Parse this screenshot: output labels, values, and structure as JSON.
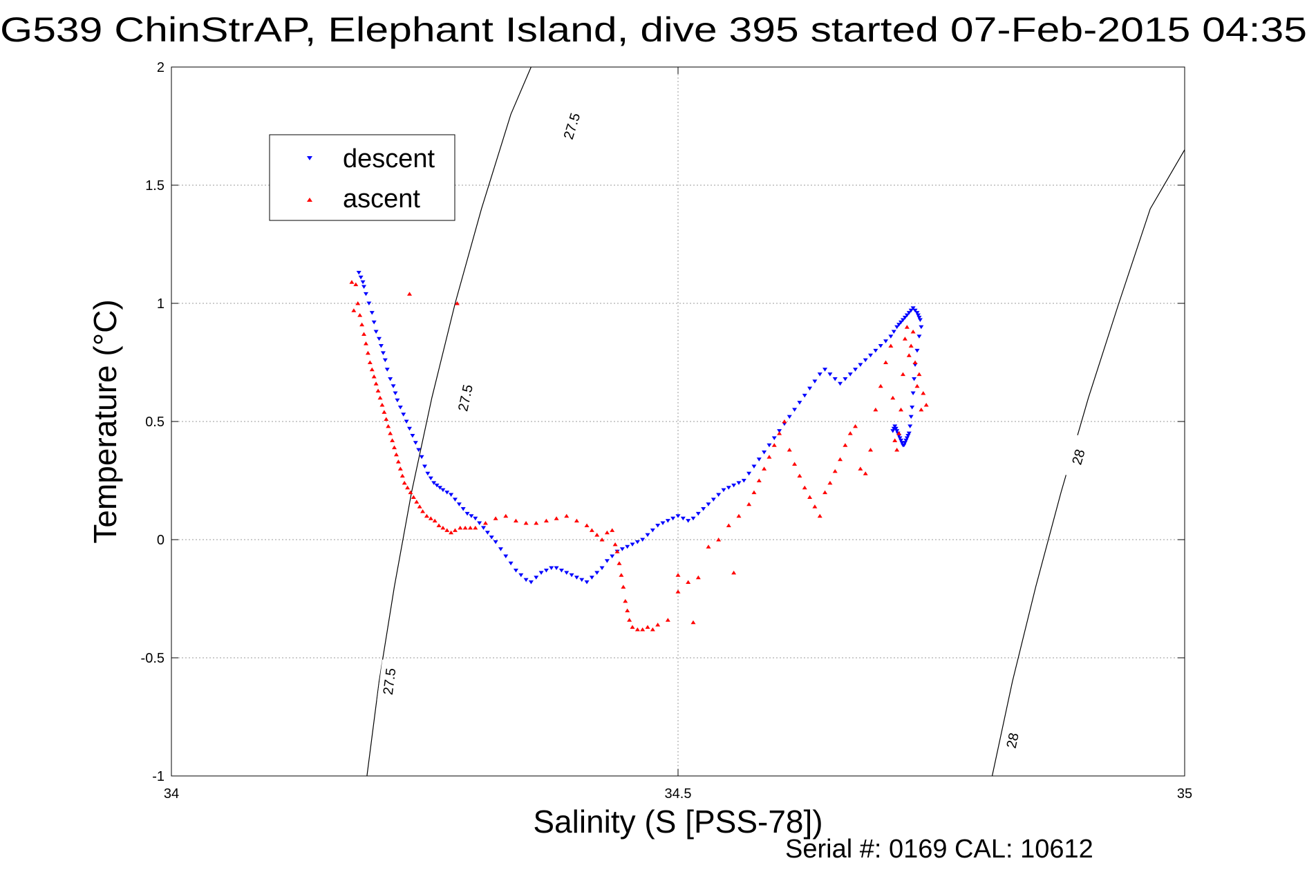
{
  "chart_data": {
    "type": "scatter",
    "title": "G539 ChinStrAP, Elephant Island, dive 395 started 07-Feb-2015 04:35",
    "xlabel": "Salinity (S [PSS-78])",
    "ylabel": "Temperature (°C)",
    "xlim": [
      34,
      35
    ],
    "ylim": [
      -1,
      2
    ],
    "xticks": [
      34,
      34.5,
      35
    ],
    "yticks": [
      -1,
      -0.5,
      0,
      0.5,
      1,
      1.5,
      2
    ],
    "grid": true,
    "legend_position": "top-left",
    "footer": "Serial #: 0169 CAL: 10612",
    "series": [
      {
        "name": "descent",
        "marker": "triangle-down",
        "color": "#0000ff",
        "x": [
          34.185,
          34.187,
          34.189,
          34.19,
          34.192,
          34.195,
          34.198,
          34.2,
          34.202,
          34.205,
          34.207,
          34.209,
          34.211,
          34.213,
          34.216,
          34.219,
          34.221,
          34.223,
          34.226,
          34.229,
          34.232,
          34.235,
          34.238,
          34.241,
          34.244,
          34.247,
          34.25,
          34.253,
          34.256,
          34.259,
          34.262,
          34.265,
          34.268,
          34.272,
          34.276,
          34.28,
          34.284,
          34.288,
          34.292,
          34.296,
          34.3,
          34.304,
          34.308,
          34.312,
          34.316,
          34.32,
          34.325,
          34.33,
          34.335,
          34.34,
          34.345,
          34.35,
          34.355,
          34.36,
          34.365,
          34.37,
          34.375,
          34.38,
          34.385,
          34.39,
          34.395,
          34.4,
          34.405,
          34.41,
          34.415,
          34.42,
          34.425,
          34.43,
          34.435,
          34.44,
          34.445,
          34.45,
          34.455,
          34.46,
          34.465,
          34.47,
          34.475,
          34.48,
          34.485,
          34.49,
          34.495,
          34.5,
          34.505,
          34.51,
          34.515,
          34.52,
          34.525,
          34.53,
          34.535,
          34.54,
          34.545,
          34.55,
          34.555,
          34.56,
          34.565,
          34.57,
          34.575,
          34.58,
          34.585,
          34.59,
          34.595,
          34.6,
          34.605,
          34.61,
          34.615,
          34.62,
          34.625,
          34.63,
          34.635,
          34.64,
          34.645,
          34.65,
          34.655,
          34.66,
          34.665,
          34.67,
          34.675,
          34.68,
          34.685,
          34.69,
          34.695,
          34.7,
          34.705,
          34.71,
          34.713,
          34.716,
          34.718,
          34.72,
          34.722,
          34.724,
          34.726,
          34.728,
          34.73,
          34.732,
          34.734,
          34.736,
          34.737,
          34.738,
          34.739,
          34.74,
          34.738,
          34.736,
          34.734,
          34.733,
          34.732,
          34.731,
          34.73,
          34.729,
          34.728,
          34.727,
          34.726,
          34.725,
          34.724,
          34.723,
          34.722,
          34.721,
          34.72,
          34.719,
          34.718,
          34.717,
          34.716,
          34.715,
          34.714,
          34.713,
          34.712
        ],
        "y": [
          1.13,
          1.11,
          1.09,
          1.07,
          1.04,
          1.0,
          0.96,
          0.92,
          0.88,
          0.85,
          0.82,
          0.79,
          0.76,
          0.72,
          0.68,
          0.65,
          0.62,
          0.59,
          0.56,
          0.53,
          0.5,
          0.47,
          0.44,
          0.41,
          0.38,
          0.35,
          0.31,
          0.28,
          0.26,
          0.24,
          0.23,
          0.22,
          0.21,
          0.2,
          0.19,
          0.17,
          0.15,
          0.13,
          0.11,
          0.1,
          0.09,
          0.07,
          0.05,
          0.03,
          0.01,
          -0.01,
          -0.04,
          -0.07,
          -0.1,
          -0.13,
          -0.15,
          -0.17,
          -0.18,
          -0.16,
          -0.14,
          -0.13,
          -0.12,
          -0.12,
          -0.13,
          -0.14,
          -0.15,
          -0.16,
          -0.17,
          -0.18,
          -0.16,
          -0.14,
          -0.12,
          -0.09,
          -0.07,
          -0.05,
          -0.04,
          -0.03,
          -0.02,
          -0.01,
          0.0,
          0.02,
          0.04,
          0.06,
          0.07,
          0.08,
          0.09,
          0.1,
          0.09,
          0.08,
          0.09,
          0.11,
          0.13,
          0.15,
          0.17,
          0.19,
          0.21,
          0.22,
          0.23,
          0.24,
          0.25,
          0.28,
          0.31,
          0.34,
          0.37,
          0.4,
          0.43,
          0.46,
          0.49,
          0.52,
          0.55,
          0.58,
          0.61,
          0.64,
          0.67,
          0.7,
          0.72,
          0.7,
          0.68,
          0.66,
          0.68,
          0.7,
          0.72,
          0.74,
          0.76,
          0.78,
          0.8,
          0.82,
          0.84,
          0.86,
          0.88,
          0.9,
          0.91,
          0.92,
          0.93,
          0.94,
          0.95,
          0.96,
          0.97,
          0.98,
          0.97,
          0.96,
          0.95,
          0.94,
          0.93,
          0.9,
          0.86,
          0.8,
          0.74,
          0.68,
          0.62,
          0.56,
          0.52,
          0.48,
          0.45,
          0.44,
          0.43,
          0.42,
          0.41,
          0.4,
          0.4,
          0.41,
          0.42,
          0.43,
          0.44,
          0.45,
          0.46,
          0.47,
          0.48,
          0.47,
          0.46
        ]
      },
      {
        "name": "ascent",
        "marker": "triangle-up",
        "color": "#ff0000",
        "x": [
          34.178,
          34.18,
          34.182,
          34.184,
          34.186,
          34.188,
          34.19,
          34.192,
          34.194,
          34.196,
          34.198,
          34.2,
          34.202,
          34.204,
          34.206,
          34.208,
          34.21,
          34.212,
          34.214,
          34.216,
          34.218,
          34.22,
          34.222,
          34.224,
          34.226,
          34.228,
          34.23,
          34.233,
          34.236,
          34.239,
          34.242,
          34.245,
          34.248,
          34.252,
          34.256,
          34.26,
          34.264,
          34.268,
          34.272,
          34.276,
          34.28,
          34.285,
          34.29,
          34.295,
          34.3,
          34.31,
          34.32,
          34.33,
          34.34,
          34.35,
          34.36,
          34.37,
          34.38,
          34.39,
          34.4,
          34.41,
          34.415,
          34.42,
          34.425,
          34.43,
          34.435,
          34.438,
          34.44,
          34.442,
          34.444,
          34.446,
          34.448,
          34.45,
          34.452,
          34.455,
          34.46,
          34.465,
          34.47,
          34.475,
          34.48,
          34.49,
          34.5,
          34.51,
          34.52,
          34.53,
          34.54,
          34.55,
          34.56,
          34.57,
          34.575,
          34.58,
          34.585,
          34.59,
          34.595,
          34.6,
          34.605,
          34.61,
          34.615,
          34.62,
          34.625,
          34.63,
          34.635,
          34.64,
          34.645,
          34.65,
          34.655,
          34.66,
          34.665,
          34.67,
          34.675,
          34.68,
          34.685,
          34.69,
          34.695,
          34.7,
          34.705,
          34.71,
          34.712,
          34.714,
          34.716,
          34.718,
          34.72,
          34.722,
          34.724,
          34.726,
          34.728,
          34.73,
          34.732,
          34.734,
          34.736,
          34.738,
          34.74,
          34.742,
          34.745,
          34.235,
          34.282,
          34.5,
          34.515,
          34.555
        ],
        "y": [
          1.09,
          0.97,
          1.08,
          1.0,
          0.95,
          0.91,
          0.87,
          0.83,
          0.79,
          0.75,
          0.72,
          0.69,
          0.66,
          0.63,
          0.6,
          0.57,
          0.54,
          0.51,
          0.48,
          0.45,
          0.42,
          0.39,
          0.36,
          0.33,
          0.3,
          0.27,
          0.24,
          0.22,
          0.2,
          0.18,
          0.16,
          0.14,
          0.12,
          0.1,
          0.09,
          0.08,
          0.06,
          0.05,
          0.04,
          0.03,
          0.04,
          0.05,
          0.05,
          0.05,
          0.05,
          0.07,
          0.09,
          0.1,
          0.08,
          0.07,
          0.07,
          0.08,
          0.09,
          0.1,
          0.08,
          0.06,
          0.04,
          0.02,
          0.0,
          0.03,
          0.04,
          -0.02,
          -0.05,
          -0.1,
          -0.15,
          -0.2,
          -0.26,
          -0.3,
          -0.34,
          -0.37,
          -0.38,
          -0.38,
          -0.37,
          -0.38,
          -0.36,
          -0.34,
          -0.22,
          -0.18,
          -0.16,
          -0.03,
          0.0,
          0.06,
          0.1,
          0.15,
          0.2,
          0.25,
          0.3,
          0.35,
          0.4,
          0.45,
          0.5,
          0.38,
          0.32,
          0.27,
          0.22,
          0.18,
          0.14,
          0.1,
          0.2,
          0.24,
          0.29,
          0.34,
          0.4,
          0.45,
          0.48,
          0.3,
          0.28,
          0.38,
          0.55,
          0.65,
          0.75,
          0.82,
          0.6,
          0.42,
          0.38,
          0.45,
          0.55,
          0.7,
          0.85,
          0.9,
          0.78,
          0.82,
          0.88,
          0.75,
          0.65,
          0.7,
          0.55,
          0.62,
          0.57,
          1.04,
          1.0,
          -0.15,
          -0.35,
          -0.14
        ]
      }
    ],
    "contours": [
      {
        "label": "27.5",
        "points": [
          [
            34.193,
            -1.0
          ],
          [
            34.205,
            -0.6
          ],
          [
            34.22,
            -0.2
          ],
          [
            34.237,
            0.2
          ],
          [
            34.257,
            0.6
          ],
          [
            34.28,
            1.0
          ],
          [
            34.306,
            1.4
          ],
          [
            34.335,
            1.8
          ],
          [
            34.355,
            2.0
          ]
        ],
        "label_positions": [
          [
            34.215,
            -0.6
          ],
          [
            34.29,
            0.6
          ],
          [
            34.395,
            1.75
          ]
        ]
      },
      {
        "label": "28",
        "points": [
          [
            34.81,
            -1.0
          ],
          [
            34.83,
            -0.6
          ],
          [
            34.853,
            -0.2
          ],
          [
            34.878,
            0.2
          ],
          [
            34.905,
            0.6
          ],
          [
            34.935,
            1.0
          ],
          [
            34.966,
            1.4
          ],
          [
            35.0,
            1.65
          ]
        ],
        "label_positions": [
          [
            34.83,
            -0.85
          ],
          [
            34.895,
            0.35
          ]
        ]
      }
    ]
  }
}
